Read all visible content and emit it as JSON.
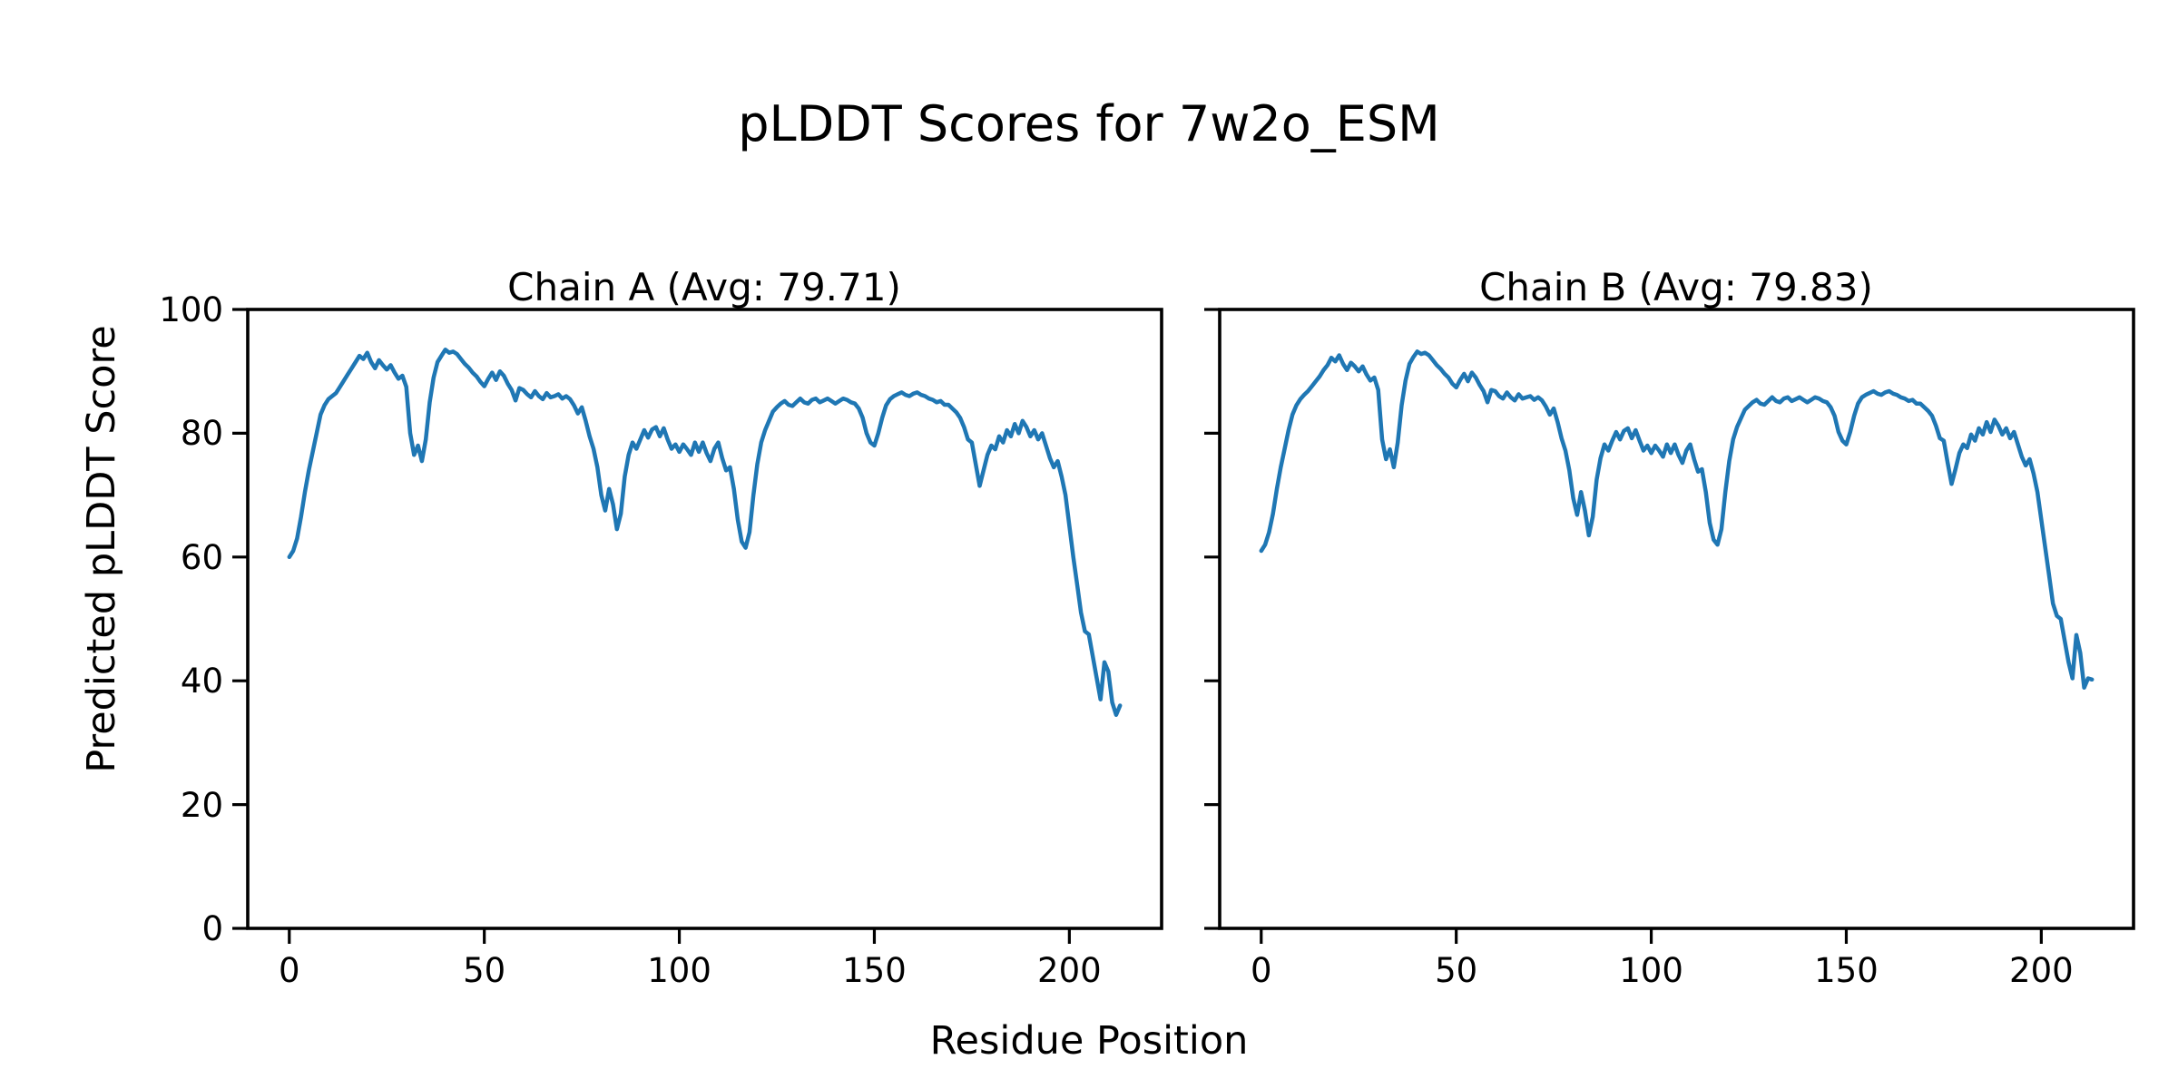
{
  "figure": {
    "title": "pLDDT Scores for 7w2o_ESM",
    "xlabel": "Residue Position",
    "ylabel": "Predicted pLDDT Score",
    "background": "#ffffff",
    "line_color": "#1f77b4"
  },
  "chart_data": [
    {
      "type": "line",
      "title": "Chain A (Avg: 79.71)",
      "avg_plddt": 79.71,
      "xlabel": "Residue Position",
      "ylabel": "Predicted pLDDT Score",
      "xlim": [
        -10.65,
        223.65
      ],
      "ylim": [
        0,
        100
      ],
      "xticks": [
        0,
        50,
        100,
        150,
        200
      ],
      "yticks": [
        0,
        20,
        40,
        60,
        80,
        100
      ],
      "show_yticklabels": true,
      "grid": false,
      "legend": "none",
      "x": {
        "start": 0,
        "step": 1,
        "count": 214
      },
      "series": [
        {
          "name": "Chain A pLDDT",
          "color": "#1f77b4",
          "values": [
            60,
            61,
            63,
            66.5,
            70.5,
            74,
            77,
            80,
            83,
            84.5,
            85.5,
            86,
            86.5,
            87.5,
            88.5,
            89.5,
            90.5,
            91.5,
            92.5,
            92,
            93,
            91.5,
            90.5,
            91.8,
            91,
            90.3,
            91,
            89.8,
            88.8,
            89.3,
            87.5,
            80,
            76.5,
            78,
            75.5,
            79,
            85,
            89,
            91.5,
            92.5,
            93.5,
            93,
            93.2,
            92.8,
            92,
            91.2,
            90.6,
            89.8,
            89.2,
            88.3,
            87.6,
            88.8,
            89.8,
            88.6,
            90,
            89.3,
            88,
            87,
            85.3,
            87.3,
            87,
            86.3,
            85.8,
            86.8,
            86,
            85.5,
            86.5,
            85.8,
            86,
            86.3,
            85.6,
            86,
            85.5,
            84.5,
            83.2,
            84.2,
            82,
            79.5,
            77.5,
            74.5,
            70,
            67.5,
            71,
            68.5,
            64.5,
            67,
            73,
            76.5,
            78.5,
            77.5,
            79,
            80.5,
            79.3,
            80.6,
            81,
            79.5,
            80.8,
            79,
            77.5,
            78.2,
            77,
            78.2,
            77.4,
            76.5,
            78.5,
            77,
            78.5,
            76.8,
            75.5,
            77.5,
            78.5,
            76,
            74,
            74.5,
            71,
            66,
            62.5,
            61.5,
            64,
            70,
            75,
            78.5,
            80.5,
            82,
            83.5,
            84.2,
            84.8,
            85.2,
            84.6,
            84.4,
            85,
            85.6,
            85,
            84.8,
            85.4,
            85.6,
            85,
            85.3,
            85.6,
            85.2,
            84.8,
            85.2,
            85.6,
            85.4,
            85,
            84.8,
            84,
            82.5,
            80,
            78.5,
            78,
            80,
            82.5,
            84.5,
            85.5,
            86,
            86.3,
            86.6,
            86.2,
            86,
            86.4,
            86.6,
            86.2,
            86,
            85.6,
            85.4,
            85,
            85.2,
            84.6,
            84.6,
            84,
            83.4,
            82.5,
            81,
            79,
            78.5,
            75,
            71.5,
            74,
            76.5,
            78,
            77.4,
            79.5,
            78.5,
            80.5,
            79.5,
            81.5,
            80,
            82,
            81,
            79.5,
            80.5,
            79,
            80,
            78,
            76,
            74.5,
            75.5,
            73,
            70,
            65,
            60,
            55.5,
            51,
            48,
            47.5,
            44,
            40.5,
            37,
            43,
            41.5,
            36.5,
            34.5,
            36
          ]
        }
      ]
    },
    {
      "type": "line",
      "title": "Chain B (Avg: 79.83)",
      "avg_plddt": 79.83,
      "xlabel": "Residue Position",
      "ylabel": "Predicted pLDDT Score",
      "xlim": [
        -10.65,
        223.65
      ],
      "ylim": [
        0,
        100
      ],
      "xticks": [
        0,
        50,
        100,
        150,
        200
      ],
      "yticks": [
        0,
        20,
        40,
        60,
        80,
        100
      ],
      "show_yticklabels": false,
      "grid": false,
      "legend": "none",
      "x": {
        "start": 0,
        "step": 1,
        "count": 214
      },
      "series": [
        {
          "name": "Chain B pLDDT",
          "color": "#1f77b4",
          "values": [
            61,
            62,
            64,
            67,
            71,
            74.5,
            77.5,
            80.5,
            83,
            84.5,
            85.5,
            86.2,
            86.8,
            87.6,
            88.4,
            89.2,
            90.2,
            91,
            92.2,
            91.6,
            92.6,
            91.2,
            90.2,
            91.4,
            90.8,
            90,
            90.8,
            89.5,
            88.5,
            89,
            87,
            79,
            75.8,
            77.4,
            74.5,
            78.5,
            84.5,
            88.5,
            91.2,
            92.3,
            93.2,
            92.8,
            93,
            92.6,
            91.8,
            91,
            90.4,
            89.6,
            89,
            88,
            87.4,
            88.6,
            89.6,
            88.4,
            89.8,
            89,
            87.8,
            86.8,
            85,
            87,
            86.8,
            86,
            85.6,
            86.6,
            85.8,
            85.3,
            86.3,
            85.6,
            85.8,
            86,
            85.4,
            85.8,
            85.3,
            84.3,
            83,
            84,
            81.8,
            79.2,
            77.2,
            74,
            69.5,
            66.8,
            70.5,
            67.5,
            63.5,
            66.5,
            72.5,
            76,
            78.2,
            77.2,
            78.8,
            80.2,
            79,
            80.4,
            80.8,
            79.2,
            80.5,
            78.8,
            77.2,
            78,
            76.8,
            78,
            77.2,
            76.2,
            78.2,
            76.8,
            78.2,
            76.5,
            75.2,
            77.2,
            78.2,
            75.8,
            73.8,
            74.2,
            70.5,
            65.5,
            62.8,
            62,
            64.5,
            70.5,
            75.5,
            79,
            81,
            82.4,
            83.8,
            84.4,
            85,
            85.4,
            84.8,
            84.6,
            85.2,
            85.8,
            85.2,
            85,
            85.6,
            85.8,
            85.2,
            85.5,
            85.8,
            85.4,
            85,
            85.4,
            85.8,
            85.6,
            85.2,
            85,
            84.2,
            82.8,
            80.2,
            78.8,
            78.2,
            80.2,
            82.8,
            84.8,
            85.8,
            86.2,
            86.5,
            86.8,
            86.4,
            86.2,
            86.6,
            86.8,
            86.4,
            86.2,
            85.8,
            85.6,
            85.2,
            85.4,
            84.8,
            84.8,
            84.2,
            83.6,
            82.8,
            81.2,
            79.2,
            78.8,
            75.2,
            71.8,
            74.2,
            76.8,
            78.2,
            77.6,
            79.8,
            78.8,
            80.8,
            79.8,
            81.8,
            80.2,
            82.2,
            81.2,
            79.8,
            80.8,
            79.2,
            80.2,
            78.2,
            76.2,
            74.8,
            75.8,
            73.5,
            70.5,
            66,
            61.5,
            57,
            52.5,
            50.5,
            50,
            46.5,
            43,
            40.4,
            47.4,
            44.5,
            38.9,
            40.4,
            40.2
          ]
        }
      ]
    }
  ]
}
